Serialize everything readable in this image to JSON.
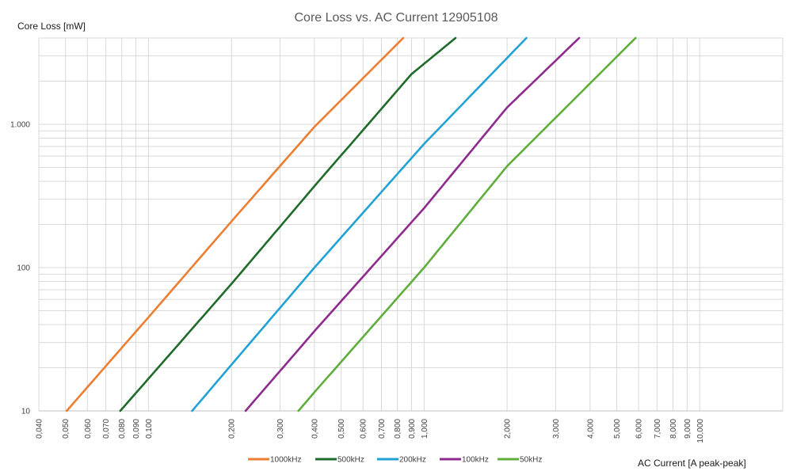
{
  "chart_data": {
    "type": "line",
    "title": "Core Loss vs. AC Current 12905108",
    "xlabel": "AC Current [A peak-peak]",
    "ylabel": "Core Loss [mW]",
    "x_scale": "log",
    "y_scale": "log",
    "xlim": [
      0.04,
      20
    ],
    "ylim": [
      10,
      4000
    ],
    "grid": true,
    "legend_position": "bottom",
    "x_tick_labels": [
      {
        "value": 0.04,
        "label": "0,040"
      },
      {
        "value": 0.05,
        "label": "0,050"
      },
      {
        "value": 0.06,
        "label": "0,060"
      },
      {
        "value": 0.07,
        "label": "0,070"
      },
      {
        "value": 0.08,
        "label": "0,080"
      },
      {
        "value": 0.09,
        "label": "0,090"
      },
      {
        "value": 0.1,
        "label": "0,100"
      },
      {
        "value": 0.2,
        "label": "0,200"
      },
      {
        "value": 0.3,
        "label": "0,300"
      },
      {
        "value": 0.4,
        "label": "0,400"
      },
      {
        "value": 0.5,
        "label": "0,500"
      },
      {
        "value": 0.6,
        "label": "0,600"
      },
      {
        "value": 0.7,
        "label": "0,700"
      },
      {
        "value": 0.8,
        "label": "0,800"
      },
      {
        "value": 0.9,
        "label": "0,900"
      },
      {
        "value": 1,
        "label": "1,000"
      },
      {
        "value": 2,
        "label": "2,000"
      },
      {
        "value": 3,
        "label": "3,000"
      },
      {
        "value": 4,
        "label": "4,000"
      },
      {
        "value": 5,
        "label": "5,000"
      },
      {
        "value": 6,
        "label": "6,000"
      },
      {
        "value": 7,
        "label": "7,000"
      },
      {
        "value": 8,
        "label": "8,000"
      },
      {
        "value": 9,
        "label": "9,000"
      },
      {
        "value": 10,
        "label": "10,000"
      }
    ],
    "y_tick_labels": [
      {
        "value": 10,
        "label": "10"
      },
      {
        "value": 100,
        "label": "100"
      },
      {
        "value": 1000,
        "label": "1.000"
      }
    ],
    "series": [
      {
        "name": "1000kHz",
        "color": "#ED7D31",
        "x": [
          0.0505,
          0.1,
          0.2,
          0.4,
          0.84
        ],
        "y": [
          10,
          45,
          210,
          960,
          4000
        ]
      },
      {
        "name": "500kHz",
        "color": "#1E6B2A",
        "x": [
          0.079,
          0.2,
          0.4,
          0.9,
          1.3
        ],
        "y": [
          10,
          77,
          370,
          2240,
          4000
        ]
      },
      {
        "name": "200kHz",
        "color": "#21A2D6",
        "x": [
          0.144,
          0.2,
          0.4,
          1.0,
          2.35
        ],
        "y": [
          10,
          21,
          100,
          730,
          4000
        ]
      },
      {
        "name": "100kHz",
        "color": "#8E2A8E",
        "x": [
          0.225,
          0.4,
          1.0,
          2.0,
          3.65
        ],
        "y": [
          10,
          36,
          260,
          1310,
          4000
        ]
      },
      {
        "name": "50kHz",
        "color": "#5FAE3C",
        "x": [
          0.35,
          0.4,
          1.0,
          2.0,
          5.85
        ],
        "y": [
          10,
          13.5,
          100,
          510,
          4000
        ]
      }
    ]
  }
}
